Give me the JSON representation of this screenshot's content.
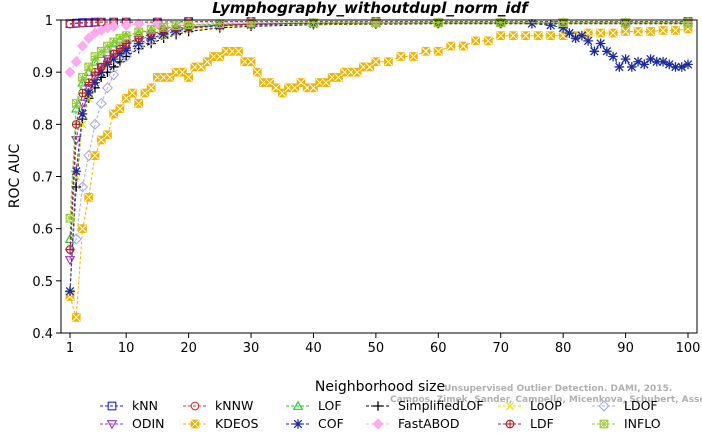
{
  "chart_data": {
    "type": "line",
    "title": "Lymphography_withoutdupl_norm_idf",
    "xlabel": "Neighborhood size",
    "ylabel": "ROC AUC",
    "xlim": [
      1,
      100
    ],
    "ylim": [
      0.4,
      1.0
    ],
    "xticks": [
      1,
      10,
      20,
      30,
      40,
      50,
      60,
      70,
      80,
      90,
      100
    ],
    "yticks": [
      0.4,
      0.5,
      0.6,
      0.7,
      0.8,
      0.9,
      1.0
    ],
    "xtick_labels": [
      "1",
      "10",
      "20",
      "30",
      "40",
      "50",
      "60",
      "70",
      "80",
      "90",
      "100"
    ],
    "ytick_labels": [
      "0.4",
      "0.5",
      "0.6",
      "0.7",
      "0.8",
      "0.9",
      "1"
    ],
    "grid": false,
    "legend_position": "bottom",
    "watermark": [
      "Unsupervised Outlier Detection. DAMI, 2015.",
      "Campos, Zimek, Sander, Campello, Micenkova, Schubert, Assent, Houle"
    ],
    "series": [
      {
        "name": "kNN",
        "color": "#1a1aff",
        "marker": "square",
        "x": [
          1,
          2,
          3,
          4,
          5,
          6,
          8,
          10,
          15,
          20,
          30,
          50,
          100
        ],
        "y": [
          0.993,
          0.994,
          0.995,
          0.995,
          0.996,
          0.996,
          0.996,
          0.996,
          0.996,
          0.997,
          0.997,
          0.997,
          0.997
        ]
      },
      {
        "name": "kNNW",
        "color": "#e03030",
        "marker": "circle",
        "x": [
          1,
          2,
          3,
          4,
          5,
          6,
          8,
          10,
          15,
          20,
          30,
          50,
          100
        ],
        "y": [
          0.992,
          0.993,
          0.994,
          0.995,
          0.995,
          0.996,
          0.996,
          0.996,
          0.996,
          0.997,
          0.997,
          0.997,
          0.997
        ]
      },
      {
        "name": "LOF",
        "color": "#22cc22",
        "marker": "triangle-up",
        "x": [
          1,
          2,
          3,
          4,
          5,
          6,
          7,
          8,
          9,
          10,
          12,
          14,
          16,
          18,
          20,
          25,
          30,
          40,
          50,
          60,
          70,
          80,
          90,
          100
        ],
        "y": [
          0.58,
          0.83,
          0.88,
          0.9,
          0.92,
          0.935,
          0.945,
          0.955,
          0.962,
          0.968,
          0.975,
          0.98,
          0.984,
          0.987,
          0.99,
          0.992,
          0.993,
          0.994,
          0.994,
          0.995,
          0.995,
          0.995,
          0.995,
          0.995
        ]
      },
      {
        "name": "SimplifiedLOF",
        "color": "#000000",
        "marker": "plus",
        "x": [
          1,
          2,
          3,
          4,
          5,
          6,
          7,
          8,
          9,
          10,
          12,
          14,
          16,
          18,
          20,
          25,
          30,
          40,
          50,
          60,
          70,
          80,
          90,
          100
        ],
        "y": [
          0.48,
          0.68,
          0.81,
          0.85,
          0.87,
          0.89,
          0.9,
          0.91,
          0.92,
          0.93,
          0.945,
          0.955,
          0.965,
          0.972,
          0.978,
          0.985,
          0.988,
          0.991,
          0.992,
          0.993,
          0.993,
          0.993,
          0.993,
          0.993
        ]
      },
      {
        "name": "LoOP",
        "color": "#e6e600",
        "marker": "x",
        "x": [
          1,
          2,
          3,
          4,
          5,
          6,
          7,
          8,
          9,
          10,
          12,
          14,
          16,
          18,
          20,
          25,
          30,
          40,
          50,
          60,
          70,
          80,
          90,
          100
        ],
        "y": [
          0.47,
          0.7,
          0.8,
          0.85,
          0.88,
          0.9,
          0.915,
          0.925,
          0.935,
          0.945,
          0.955,
          0.963,
          0.97,
          0.976,
          0.981,
          0.987,
          0.99,
          0.992,
          0.993,
          0.994,
          0.994,
          0.994,
          0.994,
          0.994
        ]
      },
      {
        "name": "LDOF",
        "color": "#aaaaee",
        "marker": "diamond",
        "x": [
          1,
          2,
          3,
          4,
          5,
          6,
          7,
          8,
          10,
          12,
          14,
          16,
          18,
          20,
          25,
          30,
          40,
          50,
          60,
          70,
          80,
          90,
          100
        ],
        "y": [
          0.56,
          0.58,
          0.68,
          0.74,
          0.8,
          0.84,
          0.87,
          0.895,
          0.93,
          0.95,
          0.962,
          0.972,
          0.979,
          0.984,
          0.989,
          0.991,
          0.993,
          0.994,
          0.994,
          0.994,
          0.994,
          0.994,
          0.994
        ]
      },
      {
        "name": "ODIN",
        "color": "#9933cc",
        "marker": "triangle-down",
        "x": [
          1,
          2,
          3,
          4,
          5,
          6,
          7,
          8,
          9,
          10,
          12,
          14,
          16,
          18,
          20,
          25,
          30,
          40,
          50,
          60,
          70,
          80,
          90,
          100
        ],
        "y": [
          0.54,
          0.77,
          0.84,
          0.87,
          0.89,
          0.91,
          0.925,
          0.935,
          0.945,
          0.952,
          0.962,
          0.97,
          0.977,
          0.982,
          0.986,
          0.99,
          0.992,
          0.994,
          0.995,
          0.995,
          0.995,
          0.995,
          0.995,
          0.995
        ]
      },
      {
        "name": "KDEOS",
        "color": "#f0b400",
        "marker": "square-x",
        "x": [
          1,
          2,
          3,
          4,
          5,
          6,
          7,
          8,
          9,
          10,
          11,
          12,
          13,
          14,
          15,
          16,
          17,
          18,
          19,
          20,
          21,
          22,
          23,
          24,
          25,
          26,
          27,
          28,
          29,
          30,
          31,
          32,
          33,
          34,
          35,
          36,
          37,
          38,
          39,
          40,
          41,
          42,
          43,
          44,
          45,
          46,
          47,
          48,
          49,
          50,
          52,
          54,
          56,
          58,
          60,
          62,
          64,
          66,
          68,
          70,
          72,
          74,
          76,
          78,
          80,
          82,
          84,
          86,
          88,
          90,
          92,
          94,
          96,
          98,
          100
        ],
        "y": [
          0.47,
          0.43,
          0.6,
          0.66,
          0.74,
          0.77,
          0.78,
          0.82,
          0.83,
          0.85,
          0.86,
          0.84,
          0.86,
          0.87,
          0.89,
          0.89,
          0.89,
          0.9,
          0.9,
          0.89,
          0.91,
          0.91,
          0.92,
          0.93,
          0.93,
          0.94,
          0.94,
          0.94,
          0.92,
          0.92,
          0.9,
          0.88,
          0.88,
          0.87,
          0.86,
          0.87,
          0.87,
          0.88,
          0.87,
          0.87,
          0.88,
          0.88,
          0.89,
          0.89,
          0.9,
          0.9,
          0.9,
          0.91,
          0.91,
          0.92,
          0.92,
          0.93,
          0.93,
          0.94,
          0.94,
          0.95,
          0.95,
          0.96,
          0.96,
          0.97,
          0.97,
          0.97,
          0.97,
          0.97,
          0.97,
          0.97,
          0.975,
          0.975,
          0.975,
          0.978,
          0.978,
          0.978,
          0.98,
          0.98,
          0.983
        ]
      },
      {
        "name": "COF",
        "color": "#1a2aa0",
        "marker": "star",
        "x": [
          1,
          2,
          3,
          4,
          5,
          6,
          7,
          8,
          9,
          10,
          12,
          14,
          16,
          18,
          20,
          25,
          30,
          40,
          50,
          60,
          70,
          75,
          78,
          80,
          81,
          82,
          83,
          84,
          85,
          86,
          87,
          88,
          89,
          90,
          91,
          92,
          93,
          94,
          95,
          96,
          97,
          98,
          99,
          100
        ],
        "y": [
          0.48,
          0.71,
          0.82,
          0.86,
          0.88,
          0.9,
          0.915,
          0.925,
          0.935,
          0.942,
          0.955,
          0.965,
          0.973,
          0.979,
          0.984,
          0.989,
          0.991,
          0.993,
          0.994,
          0.994,
          0.994,
          0.993,
          0.99,
          0.985,
          0.975,
          0.965,
          0.97,
          0.96,
          0.94,
          0.955,
          0.94,
          0.93,
          0.91,
          0.925,
          0.91,
          0.92,
          0.915,
          0.925,
          0.92,
          0.92,
          0.915,
          0.91,
          0.91,
          0.915
        ]
      },
      {
        "name": "FastABOD",
        "color": "#ffaaee",
        "marker": "diamond-fill",
        "x": [
          1,
          2,
          3,
          4,
          5,
          6,
          7,
          8,
          10,
          12,
          15,
          20,
          30,
          50,
          100
        ],
        "y": [
          0.9,
          0.92,
          0.95,
          0.965,
          0.975,
          0.98,
          0.985,
          0.988,
          0.99,
          0.992,
          0.993,
          0.994,
          0.995,
          0.995,
          0.995
        ]
      },
      {
        "name": "LDF",
        "color": "#b02020",
        "marker": "circle-plus",
        "x": [
          1,
          2,
          3,
          4,
          5,
          6,
          7,
          8,
          9,
          10,
          12,
          14,
          16,
          18,
          20,
          25,
          30,
          40,
          50,
          60,
          70,
          80,
          90,
          100
        ],
        "y": [
          0.56,
          0.8,
          0.86,
          0.88,
          0.9,
          0.91,
          0.92,
          0.935,
          0.945,
          0.955,
          0.965,
          0.973,
          0.98,
          0.984,
          0.987,
          0.99,
          0.992,
          0.994,
          0.994,
          0.994,
          0.994,
          0.994,
          0.994,
          0.994
        ]
      },
      {
        "name": "INFLO",
        "color": "#99cc33",
        "marker": "square-star",
        "x": [
          1,
          2,
          3,
          4,
          5,
          6,
          7,
          8,
          9,
          10,
          12,
          14,
          16,
          18,
          20,
          25,
          30,
          40,
          50,
          60,
          70,
          80,
          90,
          100
        ],
        "y": [
          0.62,
          0.84,
          0.89,
          0.91,
          0.93,
          0.94,
          0.95,
          0.958,
          0.965,
          0.97,
          0.977,
          0.982,
          0.986,
          0.989,
          0.991,
          0.993,
          0.994,
          0.995,
          0.995,
          0.995,
          0.995,
          0.995,
          0.995,
          0.995
        ]
      }
    ]
  }
}
